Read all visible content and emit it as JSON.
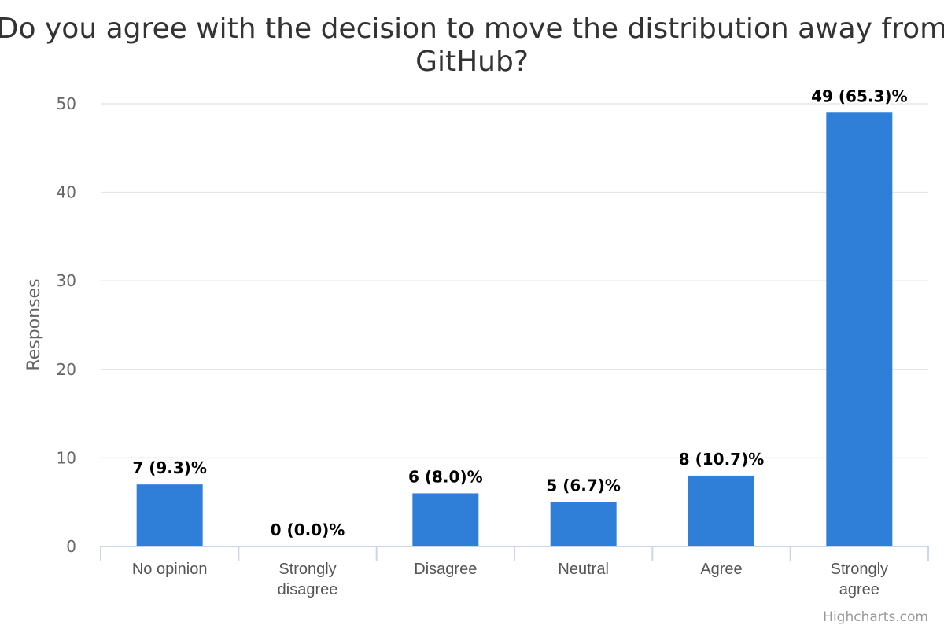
{
  "chart_data": {
    "type": "bar",
    "title_lines": [
      "Do you agree with the decision to move the distribution away from",
      "GitHub?"
    ],
    "xlabel": "",
    "ylabel": "Responses",
    "categories": [
      [
        "No opinion"
      ],
      [
        "Strongly",
        "disagree"
      ],
      [
        "Disagree"
      ],
      [
        "Neutral"
      ],
      [
        "Agree"
      ],
      [
        "Strongly",
        "agree"
      ]
    ],
    "values": [
      7,
      0,
      6,
      5,
      8,
      49
    ],
    "data_labels": [
      "7 (9.3)%",
      "0 (0.0)%",
      "6 (8.0)%",
      "5 (6.7)%",
      "8 (10.7)%",
      "49 (65.3)%"
    ],
    "ylim": [
      0,
      50
    ],
    "yticks": [
      0,
      10,
      20,
      30,
      40,
      50
    ],
    "grid": true,
    "legend": "none",
    "bar_color": "#2f7ed8"
  },
  "credits": "Highcharts.com"
}
